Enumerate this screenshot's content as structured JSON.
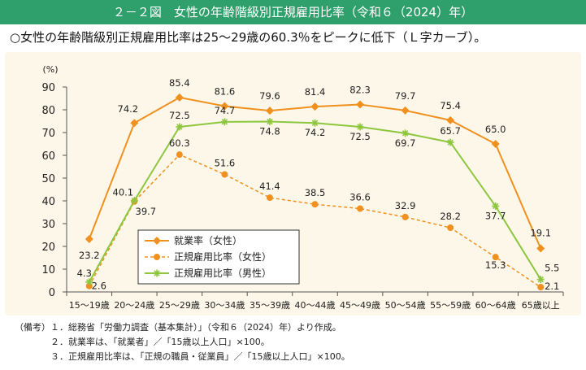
{
  "header": {
    "title": "２－２図　女性の年齢階級別正規雇用比率（令和６（2024）年）",
    "subtitle": "○女性の年齢階級別正規雇用比率は25～29歳の60.3％をピークに低下（Ｌ字カーブ）。"
  },
  "notes": {
    "label": "（備考）",
    "items": [
      "１．総務省「労働力調査（基本集計）」（令和６（2024）年）より作成。",
      "２．就業率は、「就業者」／「15歳以上人口」×100。",
      "３．正規雇用比率は、「正規の職員・従業員」／「15歳以上人口」×100。"
    ]
  },
  "chart_data": {
    "type": "line",
    "y_unit": "(%)",
    "ylim": [
      0,
      90
    ],
    "y_ticks": [
      0,
      10,
      20,
      30,
      40,
      50,
      60,
      70,
      80,
      90
    ],
    "categories": [
      "15～19歳",
      "20～24歳",
      "25～29歳",
      "30～34歳",
      "35～39歳",
      "40～44歳",
      "45～49歳",
      "50～54歳",
      "55～59歳",
      "60～64歳",
      "65歳以上"
    ],
    "grid": false,
    "legend_position": "bottom-left",
    "series": [
      {
        "name": "就業率（女性）",
        "values": [
          23.2,
          74.2,
          85.4,
          81.6,
          79.6,
          81.4,
          82.3,
          79.7,
          75.4,
          65.0,
          19.1
        ],
        "labels": [
          "23.2",
          "74.2",
          "85.4",
          "81.6",
          "79.6",
          "81.4",
          "82.3",
          "79.7",
          "75.4",
          "65.0",
          "19.1"
        ],
        "color": "#f0901e",
        "style": "solid",
        "marker": "diamond"
      },
      {
        "name": "正規雇用比率（女性）",
        "values": [
          2.6,
          39.7,
          60.3,
          51.6,
          41.4,
          38.5,
          36.6,
          32.9,
          28.2,
          15.3,
          2.1
        ],
        "labels": [
          "2.6",
          "39.7",
          "60.3",
          "51.6",
          "41.4",
          "38.5",
          "36.6",
          "32.9",
          "28.2",
          "15.3",
          "2.1"
        ],
        "color": "#f0901e",
        "style": "dashed",
        "marker": "circle"
      },
      {
        "name": "正規雇用比率（男性）",
        "values": [
          4.3,
          40.1,
          72.5,
          74.7,
          74.8,
          74.2,
          72.5,
          69.7,
          65.7,
          37.7,
          5.5
        ],
        "labels": [
          "4.3",
          "40.1",
          "72.5",
          "74.7",
          "74.8",
          "74.2",
          "72.5",
          "69.7",
          "65.7",
          "37.7",
          "5.5"
        ],
        "color": "#8dc63f",
        "style": "solid",
        "marker": "asterisk"
      }
    ]
  }
}
